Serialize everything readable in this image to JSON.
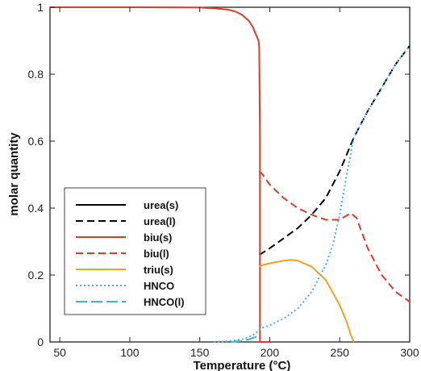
{
  "chart_data": {
    "type": "line",
    "title": "",
    "xlabel": "Temperature (°C)",
    "ylabel": "molar quantity",
    "xlim": [
      43,
      300
    ],
    "ylim": [
      0,
      1
    ],
    "x_ticks": [
      "50",
      "100",
      "150",
      "200",
      "250",
      "300"
    ],
    "y_ticks": [
      "0",
      "0.2",
      "0.4",
      "0.6",
      "0.8",
      "1"
    ],
    "x_tick_values": [
      50,
      100,
      150,
      200,
      250,
      300
    ],
    "y_tick_values": [
      0,
      0.2,
      0.4,
      0.6,
      0.8,
      1
    ],
    "grid": false,
    "legend_position": "bottom-left",
    "series": [
      {
        "name": "urea(s)",
        "color": "#000000",
        "dash": "solid",
        "x": [],
        "y": []
      },
      {
        "name": "urea(l)",
        "color": "#000000",
        "dash": "dashed",
        "x": [
          192.5,
          200,
          210,
          220,
          230,
          240,
          250,
          255,
          260,
          270,
          280,
          290,
          300
        ],
        "y": [
          0.26,
          0.28,
          0.31,
          0.34,
          0.38,
          0.43,
          0.51,
          0.56,
          0.61,
          0.69,
          0.76,
          0.83,
          0.885
        ]
      },
      {
        "name": "biu(s)",
        "color": "#e03a2a",
        "dash": "solid",
        "x": [
          43,
          100,
          150,
          160,
          170,
          175,
          180,
          185,
          188,
          190,
          192,
          192.5,
          193,
          193,
          200
        ],
        "y": [
          1,
          1,
          0.999,
          0.997,
          0.993,
          0.988,
          0.978,
          0.96,
          0.94,
          0.92,
          0.9,
          0.88,
          0.62,
          0,
          0
        ]
      },
      {
        "name": "biu(l)",
        "color": "#e03a2a",
        "dash": "dashed",
        "x": [
          192.5,
          195,
          200,
          210,
          220,
          230,
          240,
          250,
          258,
          262,
          270,
          280,
          290,
          300
        ],
        "y": [
          0.51,
          0.5,
          0.47,
          0.43,
          0.4,
          0.38,
          0.365,
          0.365,
          0.385,
          0.37,
          0.28,
          0.2,
          0.15,
          0.12
        ]
      },
      {
        "name": "triu(s)",
        "color": "#f4a020",
        "dash": "solid",
        "x": [
          192.5,
          195,
          200,
          210,
          215,
          220,
          230,
          240,
          250,
          255,
          258,
          260
        ],
        "y": [
          0.225,
          0.23,
          0.235,
          0.243,
          0.245,
          0.243,
          0.225,
          0.185,
          0.11,
          0.06,
          0.02,
          0
        ]
      },
      {
        "name": "HNCO",
        "color": "#3cb4e6",
        "dash": "dotted",
        "x": [
          160,
          170,
          180,
          185,
          190,
          193,
          200,
          210,
          220,
          230,
          240,
          245,
          250,
          255,
          260,
          270,
          280,
          290,
          300
        ],
        "y": [
          0,
          0.002,
          0.008,
          0.015,
          0.025,
          0.04,
          0.05,
          0.07,
          0.1,
          0.15,
          0.23,
          0.29,
          0.38,
          0.5,
          0.61,
          0.69,
          0.76,
          0.83,
          0.885
        ]
      },
      {
        "name": "HNCO(l)",
        "color": "#3cb4e6",
        "dash": "longdash",
        "x": [
          172,
          180,
          185,
          190,
          193
        ],
        "y": [
          0,
          0.003,
          0.008,
          0.015,
          0.022
        ]
      }
    ]
  }
}
